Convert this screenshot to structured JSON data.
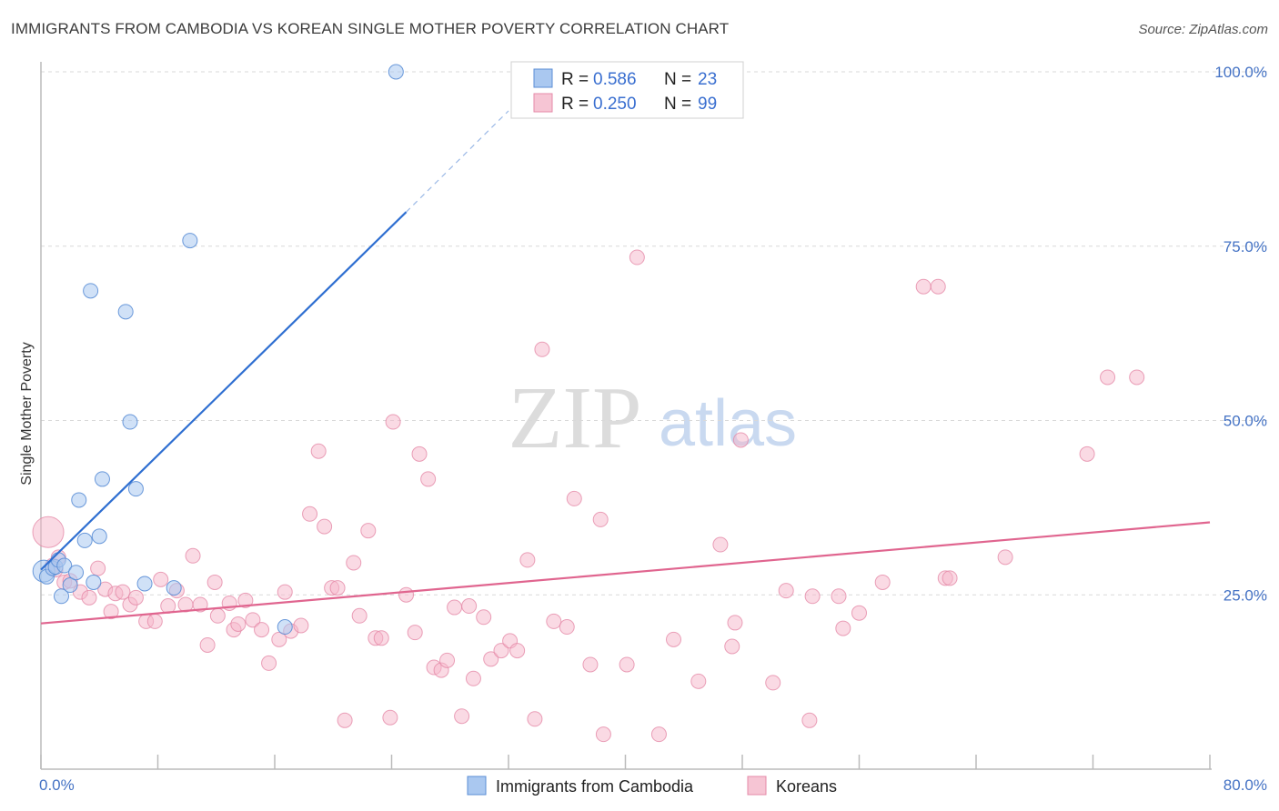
{
  "title": "IMMIGRANTS FROM CAMBODIA VS KOREAN SINGLE MOTHER POVERTY CORRELATION CHART",
  "source": "Source: ZipAtlas.com",
  "watermark": {
    "zip": "ZIP",
    "atlas": "atlas"
  },
  "colors": {
    "blue_fill": "#aac8f0",
    "blue_stroke": "#5b8ed6",
    "blue_line": "#2f6fd1",
    "pink_fill": "#f6b6c9",
    "pink_stroke": "#e58aa8",
    "pink_line": "#e0658f",
    "grid": "#d9d9d9",
    "tick_text": "#4472c4"
  },
  "legend_top": {
    "rows": [
      {
        "r_label": "R =",
        "r_value": "0.586",
        "n_label": "N =",
        "n_value": "23"
      },
      {
        "r_label": "R =",
        "r_value": "0.250",
        "n_label": "N =",
        "n_value": "99"
      }
    ]
  },
  "legend_bottom": [
    "Immigrants from Cambodia",
    "Koreans"
  ],
  "chart_data": {
    "type": "scatter",
    "title": "IMMIGRANTS FROM CAMBODIA VS KOREAN SINGLE MOTHER POVERTY CORRELATION CHART",
    "xlabel": "",
    "ylabel": "Single Mother Poverty",
    "xlim": [
      0,
      80
    ],
    "ylim": [
      0,
      100
    ],
    "x_tick_labels": [
      "0.0%",
      "80.0%"
    ],
    "y_tick_labels": [
      "25.0%",
      "50.0%",
      "75.0%",
      "100.0%"
    ],
    "y_ticks": [
      25,
      50,
      75,
      100
    ],
    "grid": true,
    "legend_placement": "top-center",
    "series": [
      {
        "name": "Immigrants from Cambodia",
        "r": 0.586,
        "n": 23,
        "trend": {
          "x": [
            0,
            25
          ],
          "y": [
            28.6,
            79.9
          ]
        },
        "trend_dashed": {
          "x": [
            25,
            32
          ],
          "y": [
            79.9,
            94.4
          ]
        },
        "points": [
          [
            0.2,
            28.4
          ],
          [
            0.4,
            27.6
          ],
          [
            0.8,
            28.8
          ],
          [
            1.0,
            29.0
          ],
          [
            1.2,
            30.0
          ],
          [
            1.4,
            24.8
          ],
          [
            1.6,
            29.2
          ],
          [
            2.0,
            26.4
          ],
          [
            2.4,
            28.2
          ],
          [
            2.6,
            38.6
          ],
          [
            3.0,
            32.8
          ],
          [
            3.4,
            68.6
          ],
          [
            3.6,
            26.8
          ],
          [
            4.0,
            33.4
          ],
          [
            4.2,
            41.6
          ],
          [
            5.8,
            65.6
          ],
          [
            6.1,
            49.8
          ],
          [
            6.5,
            40.2
          ],
          [
            7.1,
            26.6
          ],
          [
            9.1,
            26.0
          ],
          [
            10.2,
            75.8
          ],
          [
            16.7,
            20.4
          ],
          [
            24.3,
            100.0
          ]
        ]
      },
      {
        "name": "Koreans",
        "r": 0.25,
        "n": 99,
        "trend": {
          "x": [
            0,
            80
          ],
          "y": [
            20.9,
            35.4
          ]
        },
        "points": [
          [
            0.5,
            34.0
          ],
          [
            0.8,
            29.2
          ],
          [
            1.0,
            28.6
          ],
          [
            1.2,
            30.4
          ],
          [
            1.6,
            26.8
          ],
          [
            2.0,
            27.0
          ],
          [
            2.7,
            25.4
          ],
          [
            3.3,
            24.6
          ],
          [
            3.9,
            28.8
          ],
          [
            4.4,
            25.8
          ],
          [
            4.8,
            22.6
          ],
          [
            5.1,
            25.2
          ],
          [
            5.6,
            25.4
          ],
          [
            6.1,
            23.6
          ],
          [
            6.5,
            24.6
          ],
          [
            7.2,
            21.2
          ],
          [
            7.8,
            21.2
          ],
          [
            8.2,
            27.2
          ],
          [
            8.7,
            23.4
          ],
          [
            9.3,
            25.6
          ],
          [
            9.9,
            23.6
          ],
          [
            10.4,
            30.6
          ],
          [
            10.9,
            23.6
          ],
          [
            11.4,
            17.8
          ],
          [
            11.9,
            26.8
          ],
          [
            12.1,
            22.0
          ],
          [
            12.9,
            23.8
          ],
          [
            13.2,
            20.0
          ],
          [
            13.5,
            20.8
          ],
          [
            14.0,
            24.2
          ],
          [
            14.5,
            21.4
          ],
          [
            15.1,
            20.0
          ],
          [
            15.6,
            15.2
          ],
          [
            16.3,
            18.6
          ],
          [
            16.7,
            25.4
          ],
          [
            17.1,
            19.8
          ],
          [
            17.8,
            20.6
          ],
          [
            18.4,
            36.6
          ],
          [
            19.0,
            45.6
          ],
          [
            19.4,
            34.8
          ],
          [
            19.9,
            26.0
          ],
          [
            20.3,
            26.0
          ],
          [
            20.8,
            7.0
          ],
          [
            21.4,
            29.6
          ],
          [
            21.8,
            22.0
          ],
          [
            22.4,
            34.2
          ],
          [
            22.9,
            18.8
          ],
          [
            23.3,
            18.8
          ],
          [
            23.9,
            7.4
          ],
          [
            24.1,
            49.8
          ],
          [
            25.0,
            25.0
          ],
          [
            25.6,
            19.6
          ],
          [
            25.9,
            45.2
          ],
          [
            26.5,
            41.6
          ],
          [
            26.9,
            14.6
          ],
          [
            27.4,
            14.2
          ],
          [
            27.8,
            15.6
          ],
          [
            28.3,
            23.2
          ],
          [
            28.8,
            7.6
          ],
          [
            29.3,
            23.4
          ],
          [
            29.6,
            13.0
          ],
          [
            30.3,
            21.8
          ],
          [
            30.8,
            15.8
          ],
          [
            31.5,
            17.0
          ],
          [
            32.1,
            18.4
          ],
          [
            32.6,
            17.0
          ],
          [
            33.3,
            30.0
          ],
          [
            33.8,
            7.2
          ],
          [
            34.3,
            60.2
          ],
          [
            35.1,
            21.2
          ],
          [
            36.0,
            20.4
          ],
          [
            36.5,
            38.8
          ],
          [
            37.6,
            15.0
          ],
          [
            38.3,
            35.8
          ],
          [
            38.5,
            5.0
          ],
          [
            40.1,
            15.0
          ],
          [
            40.8,
            73.4
          ],
          [
            42.3,
            5.0
          ],
          [
            43.3,
            18.6
          ],
          [
            45.0,
            12.6
          ],
          [
            46.5,
            32.2
          ],
          [
            47.3,
            17.6
          ],
          [
            47.5,
            21.0
          ],
          [
            47.9,
            47.2
          ],
          [
            50.1,
            12.4
          ],
          [
            51.0,
            25.6
          ],
          [
            52.6,
            7.0
          ],
          [
            52.8,
            24.8
          ],
          [
            54.6,
            24.8
          ],
          [
            54.9,
            20.2
          ],
          [
            56.0,
            22.4
          ],
          [
            57.6,
            26.8
          ],
          [
            60.4,
            69.2
          ],
          [
            61.4,
            69.2
          ],
          [
            61.9,
            27.4
          ],
          [
            62.2,
            27.4
          ],
          [
            66.0,
            30.4
          ],
          [
            71.6,
            45.2
          ],
          [
            73.0,
            56.2
          ],
          [
            75.0,
            56.2
          ]
        ]
      }
    ]
  }
}
